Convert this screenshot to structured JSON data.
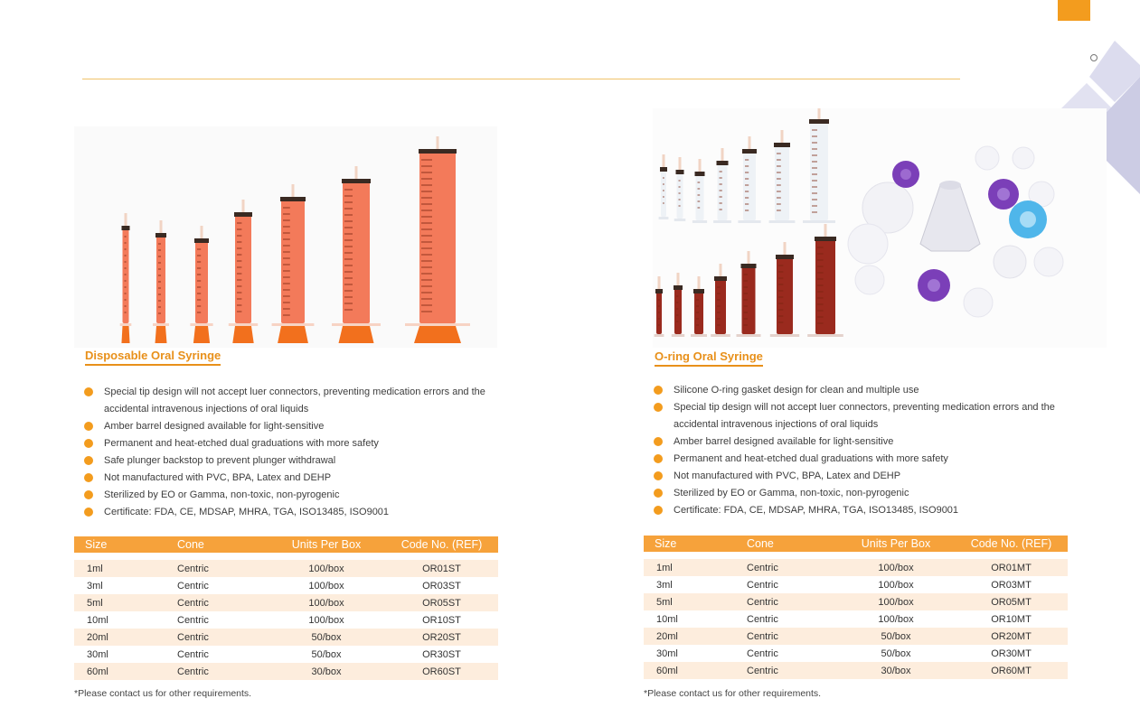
{
  "left": {
    "title": "Disposable Oral Syringe",
    "features": [
      "Special tip design will not accept luer connectors, preventing medication errors and the accidental intravenous injections of oral liquids",
      "Amber barrel designed available  for light-sensitive",
      "Permanent and heat-etched dual graduations with more safety",
      "Safe plunger backstop to prevent plunger withdrawal",
      "Not manufactured with PVC, BPA, Latex and DEHP",
      "Sterilized by EO or Gamma, non-toxic, non-pyrogenic",
      "Certificate: FDA, CE, MDSAP, MHRA, TGA, ISO13485, ISO9001"
    ],
    "table": {
      "headers": [
        "Size",
        "Cone",
        "Units Per Box",
        "Code No. (REF)"
      ],
      "rows": [
        [
          "1ml",
          "Centric",
          "100/box",
          "OR01ST"
        ],
        [
          "3ml",
          "Centric",
          "100/box",
          "OR03ST"
        ],
        [
          "5ml",
          "Centric",
          "100/box",
          "OR05ST"
        ],
        [
          "10ml",
          "Centric",
          "100/box",
          "OR10ST"
        ],
        [
          "20ml",
          "Centric",
          "50/box",
          "OR20ST"
        ],
        [
          "30ml",
          "Centric",
          "50/box",
          "OR30ST"
        ],
        [
          "60ml",
          "Centric",
          "30/box",
          "OR60ST"
        ]
      ]
    },
    "footnote": "*Please contact us for other requirements."
  },
  "right": {
    "title": "O-ring Oral Syringe",
    "features": [
      "Silicone O-ring gasket design for clean and multiple use",
      "Special tip design will not accept luer connectors, preventing medication errors and the accidental intravenous injections of oral liquids",
      "Amber barrel designed available  for light-sensitive",
      "Permanent and heat-etched dual graduations with more safety",
      "Not manufactured with PVC, BPA, Latex and DEHP",
      "Sterilized by EO or Gamma, non-toxic, non-pyrogenic",
      "Certificate: FDA, CE, MDSAP, MHRA, TGA, ISO13485, ISO9001"
    ],
    "table": {
      "headers": [
        "Size",
        "Cone",
        "Units Per Box",
        "Code No. (REF)"
      ],
      "rows": [
        [
          "1ml",
          "Centric",
          "100/box",
          "OR01MT"
        ],
        [
          "3ml",
          "Centric",
          "100/box",
          "OR03MT"
        ],
        [
          "5ml",
          "Centric",
          "100/box",
          "OR05MT"
        ],
        [
          "10ml",
          "Centric",
          "100/box",
          "OR10MT"
        ],
        [
          "20ml",
          "Centric",
          "50/box",
          "OR20MT"
        ],
        [
          "30ml",
          "Centric",
          "50/box",
          "OR30MT"
        ],
        [
          "60ml",
          "Centric",
          "30/box",
          "OR60MT"
        ]
      ]
    },
    "footnote": "*Please contact us for other requirements."
  },
  "colors": {
    "accent": "#f39c1e",
    "header_fill": "#f6a23b",
    "stripe": "#fdeddd",
    "deco": "#d4d4ea"
  }
}
